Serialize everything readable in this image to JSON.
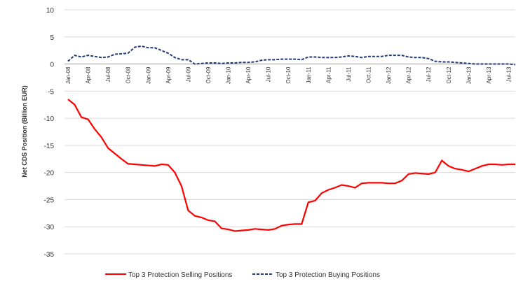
{
  "chart_data": {
    "type": "line",
    "y_label": "Net CDS Position (Billion EUR)",
    "categories": [
      "Jan-08",
      null,
      null,
      "Apr-08",
      null,
      null,
      "Jul-08",
      null,
      null,
      "Oct-08",
      null,
      null,
      "Jan-09",
      null,
      null,
      "Apr-09",
      null,
      null,
      "Jul-09",
      null,
      null,
      "Oct-09",
      null,
      null,
      "Jan-10",
      null,
      null,
      "Apr-10",
      null,
      null,
      "Jul-10",
      null,
      null,
      "Oct-10",
      null,
      null,
      "Jan-11",
      null,
      null,
      "Apr-11",
      null,
      null,
      "Jul-11",
      null,
      null,
      "Oct-11",
      null,
      null,
      "Jan-12",
      null,
      null,
      "Apr-12",
      null,
      null,
      "Jul-12",
      null,
      null,
      "Oct-12",
      null,
      null,
      "Jan-13",
      null,
      null,
      "Apr-13",
      null,
      null,
      "Jul-13",
      null
    ],
    "series": [
      {
        "name": "Top 3 Protection Selling Positions",
        "color": "#ff0000",
        "dash": false,
        "values": [
          -6.5,
          -7.5,
          -9.8,
          -10.2,
          -12,
          -13.5,
          -15.5,
          -16.5,
          -17.5,
          -18.4,
          -18.5,
          -18.6,
          -18.7,
          -18.8,
          -18.5,
          -18.6,
          -20,
          -22.5,
          -27,
          -28,
          -28.3,
          -28.8,
          -29,
          -30.3,
          -30.5,
          -30.8,
          -30.7,
          -30.6,
          -30.4,
          -30.5,
          -30.6,
          -30.4,
          -29.8,
          -29.6,
          -29.5,
          -29.5,
          -25.5,
          -25.2,
          -23.8,
          -23.2,
          -22.8,
          -22.3,
          -22.5,
          -22.8,
          -22,
          -21.9,
          -21.9,
          -21.9,
          -22,
          -22,
          -21.5,
          -20.3,
          -20.1,
          -20.2,
          -20.3,
          -20,
          -17.8,
          -18.8,
          -19.3,
          -19.5,
          -19.8,
          -19.3,
          -18.8,
          -18.5,
          -18.5,
          -18.6,
          -18.5,
          -18.5
        ]
      },
      {
        "name": "Top 3 Protection Buying Positions",
        "color": "#1f3a7a",
        "dash": true,
        "values": [
          0.5,
          1.6,
          1.3,
          1.6,
          1.4,
          1.2,
          1.3,
          1.8,
          1.9,
          2.0,
          3.1,
          3.3,
          3.0,
          3.0,
          2.5,
          2.0,
          1.2,
          0.8,
          0.8,
          0,
          0.1,
          0.2,
          0.2,
          0.1,
          0.2,
          0.2,
          0.3,
          0.3,
          0.4,
          0.7,
          0.8,
          0.8,
          0.9,
          0.9,
          0.9,
          0.8,
          1.3,
          1.3,
          1.2,
          1.2,
          1.2,
          1.3,
          1.5,
          1.4,
          1.2,
          1.4,
          1.4,
          1.4,
          1.6,
          1.6,
          1.6,
          1.3,
          1.2,
          1.2,
          1.0,
          0.5,
          0.4,
          0.4,
          0.3,
          0.2,
          0.1,
          0.0,
          0.0,
          0.0,
          0.0,
          0.0,
          0.0,
          -0.1
        ]
      }
    ],
    "ylim": [
      -35,
      10
    ],
    "yticks": [
      -35,
      -30,
      -25,
      -20,
      -15,
      -10,
      -5,
      0,
      5,
      10
    ],
    "grid": true
  }
}
